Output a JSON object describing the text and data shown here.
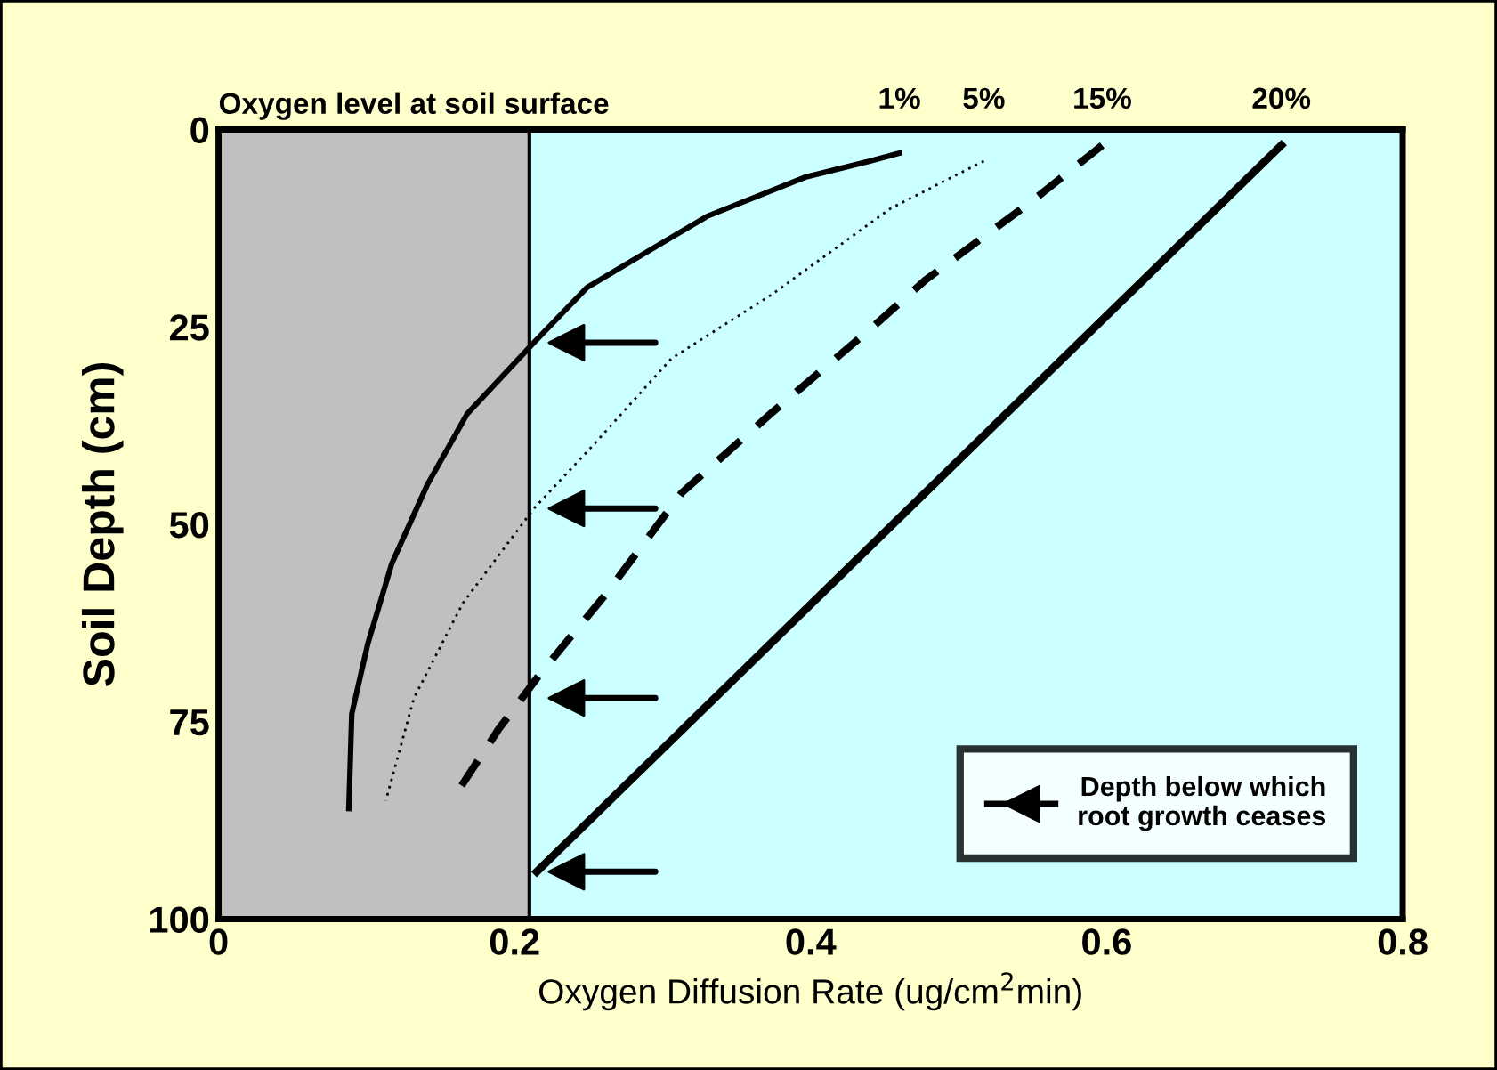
{
  "chart_data": {
    "type": "line",
    "xlabel": "Oxygen Diffusion Rate (ug/cm$^{2}$min)",
    "ylabel": "Soil Depth (cm)",
    "annotations": [
      "Oxygen level at soil surface"
    ],
    "xlim": [
      0,
      0.8
    ],
    "xticks": [
      0,
      0.2,
      0.4,
      0.6,
      0.8
    ],
    "ylim": [
      100,
      0
    ],
    "yticks": [
      0,
      25,
      50,
      75,
      100
    ],
    "bands": [
      {
        "axis": "x",
        "from": 0,
        "to": 0.21,
        "color": "#c0c0c0"
      }
    ],
    "legend": "bottom right",
    "grid": false,
    "series": [
      {
        "name": "1%",
        "color": "#000000",
        "line_style": "solid",
        "x": [
          0.46,
          0.44,
          0.397,
          0.33,
          0.249,
          0.213,
          0.168,
          0.141,
          0.117,
          0.101,
          0.09,
          0.088
        ],
        "values": [
          3,
          4,
          6,
          11,
          20,
          27,
          36,
          45,
          55,
          65,
          74,
          86
        ]
      },
      {
        "name": "5%",
        "color": "#000000",
        "line_style": "dotted",
        "x": [
          0.517,
          0.454,
          0.373,
          0.306,
          0.253,
          0.213,
          0.165,
          0.132,
          0.113
        ],
        "values": [
          4,
          10,
          21,
          29,
          40,
          48,
          60,
          72,
          85
        ]
      },
      {
        "name": "15%",
        "color": "#000000",
        "line_style": "dashed",
        "x": [
          0.597,
          0.55,
          0.478,
          0.442,
          0.373,
          0.313,
          0.261,
          0.217,
          0.189,
          0.161
        ],
        "values": [
          2,
          9,
          19,
          25,
          36,
          46,
          59,
          69,
          76,
          84
        ]
      },
      {
        "name": "20%",
        "color": "#000000",
        "line_style": "solid",
        "x": [
          0.718,
          0.215
        ],
        "values": [
          2,
          94
        ]
      },
      {
        "name": "Depth below which\nroot growth ceases",
        "type": "scatter",
        "marker": "triangle",
        "color": "#000000",
        "x": [
          0.235,
          0.235,
          0.235,
          0.235
        ],
        "values": [
          27,
          48,
          72,
          94
        ]
      }
    ]
  }
}
